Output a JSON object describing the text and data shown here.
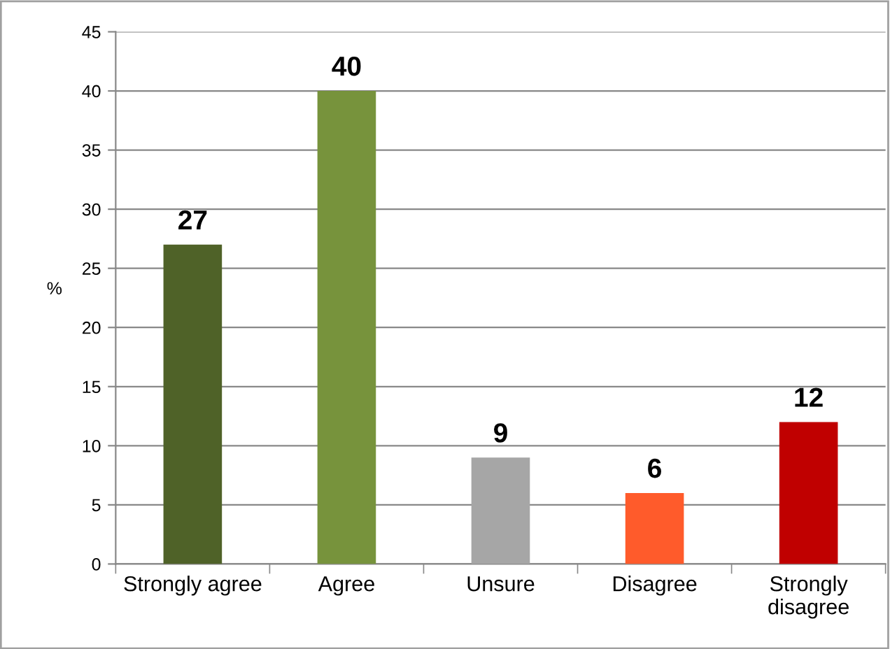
{
  "chart_data": {
    "type": "bar",
    "categories": [
      "Strongly agree",
      "Agree",
      "Unsure",
      "Disagree",
      "Strongly\ndisagree"
    ],
    "values": [
      27,
      40,
      9,
      6,
      12
    ],
    "colors": [
      "#4f6228",
      "#77933c",
      "#a6a6a6",
      "#ff5b2b",
      "#c00000"
    ],
    "ylabel": "%",
    "ylim": [
      0,
      45
    ],
    "yticks": [
      0,
      5,
      10,
      15,
      20,
      25,
      30,
      35,
      40,
      45
    ],
    "grid": "y",
    "data_labels": true,
    "legend": false
  }
}
